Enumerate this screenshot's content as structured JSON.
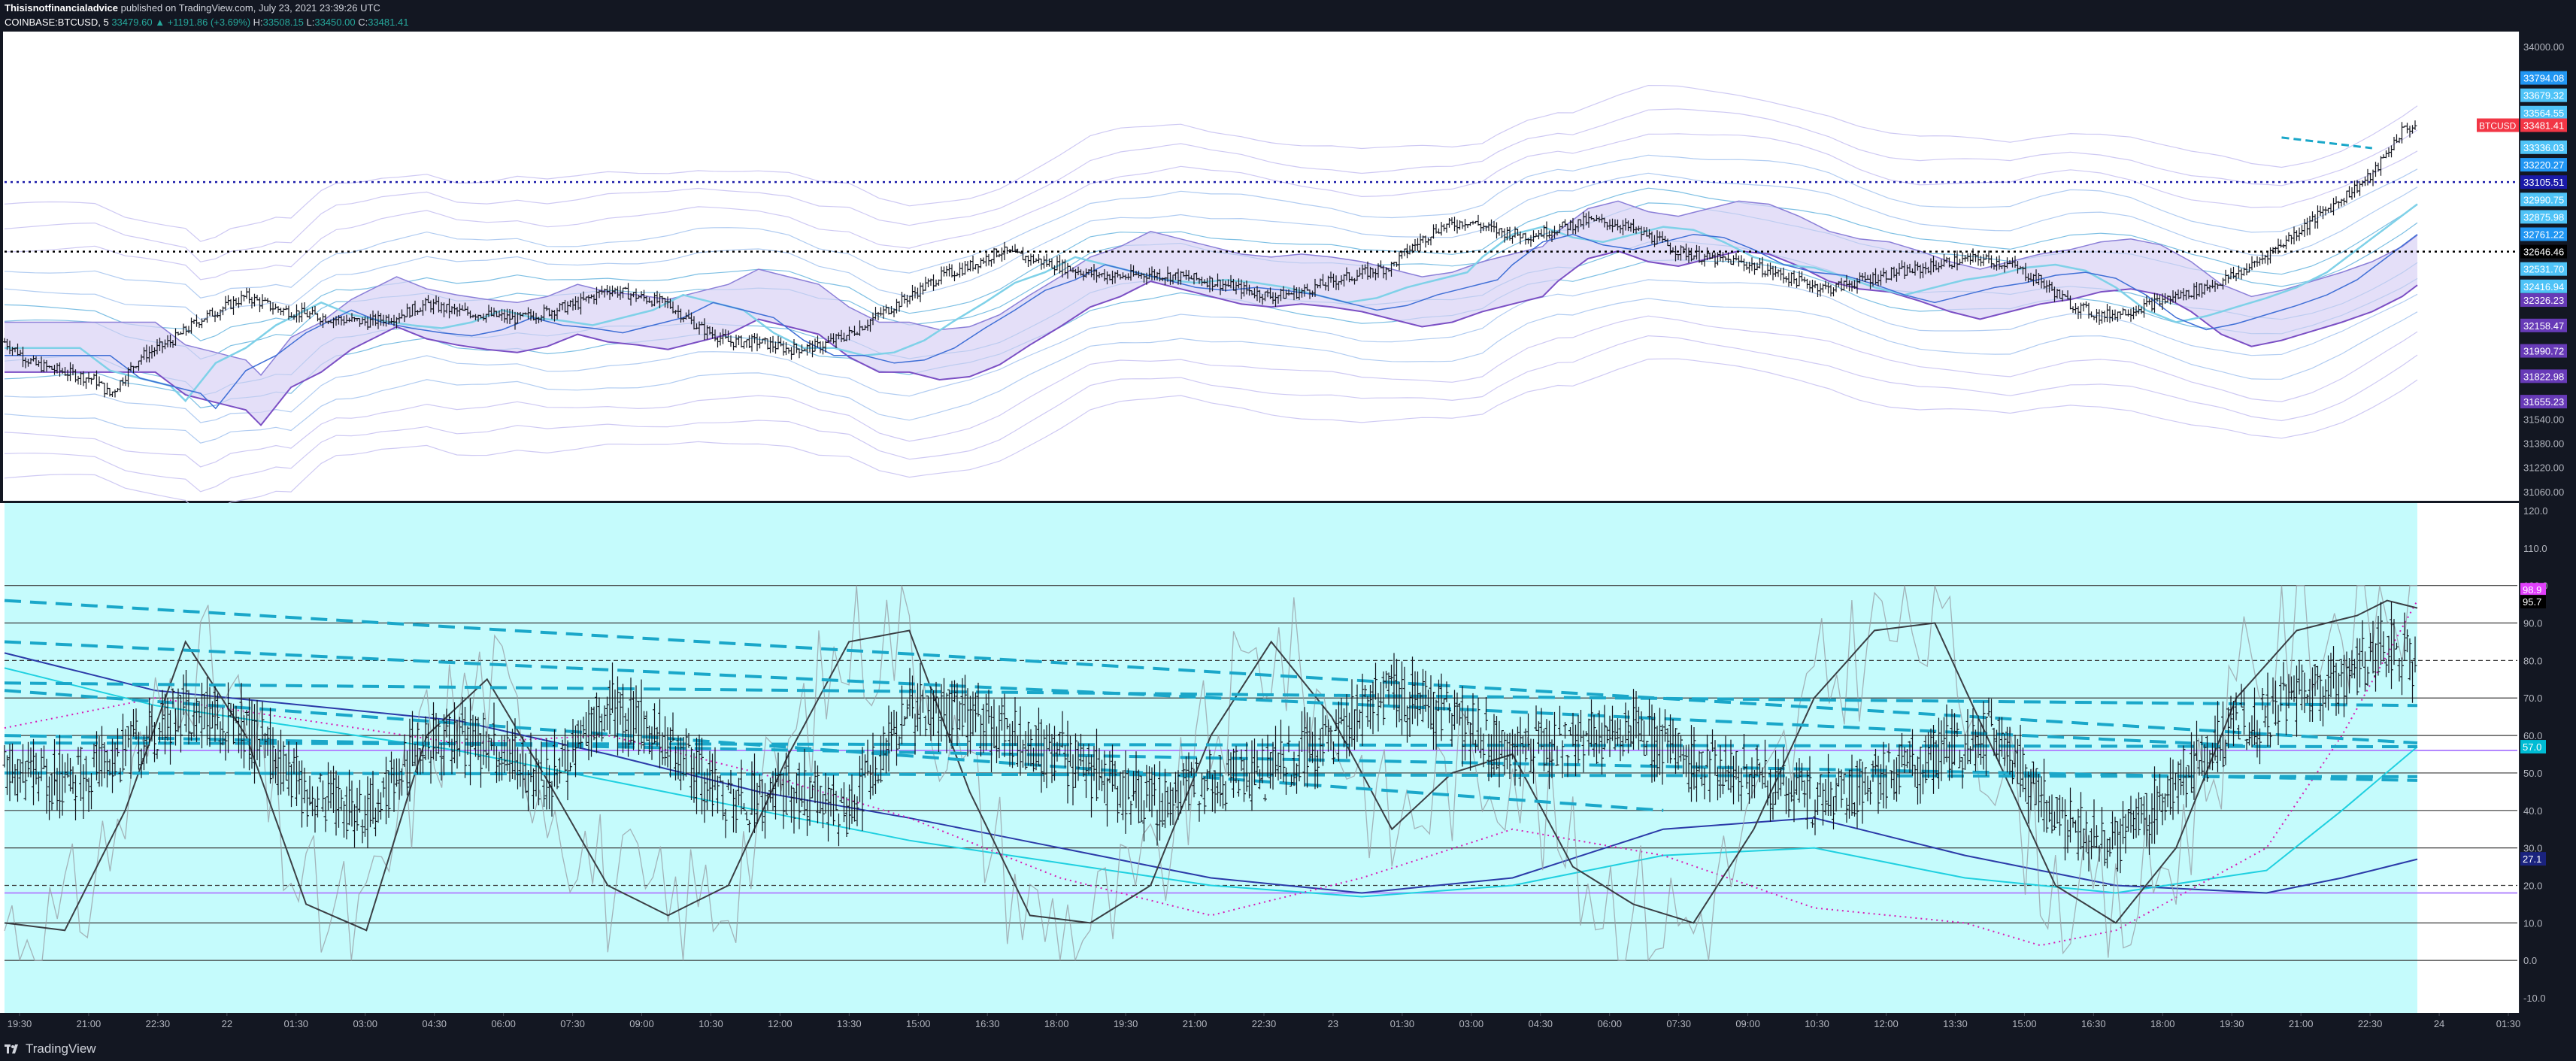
{
  "header": {
    "author": "Thisisnotfinancialadvice",
    "published_text": "published on TradingView.com, July 23, 2021 23:39:26 UTC",
    "symbol": "COINBASE:BTCUSD, 5",
    "open": "33479.60",
    "change": "+1191.86 (+3.69%)",
    "high_label": "H:",
    "high": "33508.15",
    "low_label": "L:",
    "low": "33450.00",
    "close_label": "C:",
    "close": "33481.41",
    "change_arrow": "▲"
  },
  "footer": {
    "brand": "TradingView",
    "logo_icon": "tradingview-logo-icon"
  },
  "colors": {
    "background": "#131722",
    "indicator_bg": "#c5fbfc",
    "candle": "#14161f",
    "band_fill": "#d9d2f5",
    "ribbon_teal": "#7fd1e8",
    "dashed_trend": "#1aa7c9",
    "dotted_level": "#1a1aa8",
    "axis_text": "#b2b5be"
  },
  "chart_data": [
    {
      "type": "candlestick",
      "title": "COINBASE:BTCUSD, 5",
      "ylim": [
        31000,
        34100
      ],
      "grid": false,
      "y_ticks": [
        "34000.00",
        "31540.00",
        "31380.00",
        "31220.00",
        "31060.00"
      ],
      "x_ticks": [
        "19:30",
        "21:00",
        "22:30",
        "22",
        "01:30",
        "03:00",
        "04:30",
        "06:00",
        "07:30",
        "09:00",
        "10:30",
        "12:00",
        "13:30",
        "15:00",
        "16:30",
        "18:00",
        "19:30",
        "21:00",
        "22:30",
        "23",
        "01:30",
        "03:00",
        "04:30",
        "06:00",
        "07:30",
        "09:00",
        "10:30",
        "12:00",
        "13:30",
        "15:00",
        "16:30",
        "18:00",
        "19:30",
        "21:00",
        "22:30",
        "24",
        "01:30"
      ],
      "price_path": [
        [
          0,
          32050
        ],
        [
          2,
          31900
        ],
        [
          4,
          31850
        ],
        [
          6,
          31800
        ],
        [
          7,
          31700
        ],
        [
          9,
          31950
        ],
        [
          11,
          32050
        ],
        [
          13,
          32200
        ],
        [
          15,
          32300
        ],
        [
          16,
          32350
        ],
        [
          18,
          32270
        ],
        [
          20,
          32230
        ],
        [
          22,
          32200
        ],
        [
          24,
          32180
        ],
        [
          26,
          32220
        ],
        [
          28,
          32300
        ],
        [
          30,
          32250
        ],
        [
          32,
          32230
        ],
        [
          34,
          32200
        ],
        [
          36,
          32250
        ],
        [
          38,
          32300
        ],
        [
          40,
          32400
        ],
        [
          42,
          32350
        ],
        [
          44,
          32300
        ],
        [
          46,
          32150
        ],
        [
          48,
          32050
        ],
        [
          50,
          32050
        ],
        [
          52,
          32000
        ],
        [
          54,
          32020
        ],
        [
          56,
          32100
        ],
        [
          58,
          32230
        ],
        [
          60,
          32350
        ],
        [
          62,
          32480
        ],
        [
          64,
          32550
        ],
        [
          66,
          32650
        ],
        [
          68,
          32600
        ],
        [
          70,
          32550
        ],
        [
          72,
          32500
        ],
        [
          74,
          32480
        ],
        [
          76,
          32500
        ],
        [
          78,
          32480
        ],
        [
          80,
          32450
        ],
        [
          82,
          32400
        ],
        [
          84,
          32350
        ],
        [
          86,
          32380
        ],
        [
          88,
          32450
        ],
        [
          90,
          32500
        ],
        [
          92,
          32550
        ],
        [
          93,
          32650
        ],
        [
          95,
          32800
        ],
        [
          97,
          32850
        ],
        [
          99,
          32780
        ],
        [
          101,
          32750
        ],
        [
          103,
          32800
        ],
        [
          105,
          32850
        ],
        [
          107,
          32830
        ],
        [
          109,
          32750
        ],
        [
          111,
          32650
        ],
        [
          113,
          32600
        ],
        [
          115,
          32580
        ],
        [
          117,
          32520
        ],
        [
          119,
          32450
        ],
        [
          121,
          32400
        ],
        [
          123,
          32450
        ],
        [
          125,
          32500
        ],
        [
          127,
          32530
        ],
        [
          129,
          32580
        ],
        [
          131,
          32600
        ],
        [
          133,
          32560
        ],
        [
          135,
          32450
        ],
        [
          137,
          32300
        ],
        [
          139,
          32220
        ],
        [
          141,
          32260
        ],
        [
          143,
          32320
        ],
        [
          145,
          32380
        ],
        [
          147,
          32450
        ],
        [
          149,
          32550
        ],
        [
          151,
          32700
        ],
        [
          153,
          32850
        ],
        [
          155,
          33000
        ],
        [
          157,
          33150
        ],
        [
          158,
          33300
        ],
        [
          159,
          33450
        ],
        [
          160,
          33481
        ]
      ],
      "horizontal_levels": [
        {
          "price": 33105.51,
          "style": "dotted",
          "color": "#1a1aa8"
        },
        {
          "price": 32646.46,
          "style": "dotted",
          "color": "#000000"
        }
      ],
      "last_price_tag": {
        "symbol": "BTCUSD",
        "price": "33481.41",
        "color": "#f23645"
      },
      "axis_labels": [
        {
          "text": "33794.08",
          "price": 33794.08,
          "color": "#2196f3"
        },
        {
          "text": "33679.32",
          "price": 33679.32,
          "color": "#4fc3f7"
        },
        {
          "text": "33564.55",
          "price": 33564.55,
          "color": "#4fc3f7"
        },
        {
          "text": "33481.41",
          "price": 33481.41,
          "color": "#f23645"
        },
        {
          "text": "33336.03",
          "price": 33336.03,
          "color": "#4fc3f7"
        },
        {
          "text": "33220.27",
          "price": 33220.27,
          "color": "#2196f3"
        },
        {
          "text": "33105.51",
          "price": 33105.51,
          "color": "#1a1aa8"
        },
        {
          "text": "32990.75",
          "price": 32990.75,
          "color": "#4fc3f7"
        },
        {
          "text": "32875.98",
          "price": 32875.98,
          "color": "#4fc3f7"
        },
        {
          "text": "32761.22",
          "price": 32761.22,
          "color": "#2196f3"
        },
        {
          "text": "32646.46",
          "price": 32646.46,
          "color": "#000000"
        },
        {
          "text": "32531.70",
          "price": 32531.7,
          "color": "#4fc3f7"
        },
        {
          "text": "32416.94",
          "price": 32416.94,
          "color": "#4fc3f7"
        },
        {
          "text": "32326.23",
          "price": 32326.23,
          "color": "#673ab7"
        },
        {
          "text": "32158.47",
          "price": 32158.47,
          "color": "#673ab7"
        },
        {
          "text": "31990.72",
          "price": 31990.72,
          "color": "#673ab7"
        },
        {
          "text": "31822.98",
          "price": 31822.98,
          "color": "#673ab7"
        },
        {
          "text": "31655.23",
          "price": 31655.23,
          "color": "#673ab7"
        }
      ]
    },
    {
      "type": "line",
      "title": "",
      "ylim": [
        -14,
        122
      ],
      "grid": false,
      "y_ticks": [
        "120.0",
        "110.0",
        "100.0",
        "90.0",
        "80.0",
        "70.0",
        "60.0",
        "50.0",
        "40.0",
        "30.0",
        "20.0",
        "10.0",
        "0.0",
        "-10.0"
      ],
      "horizontal_levels": [
        {
          "value": 100,
          "style": "solid"
        },
        {
          "value": 90,
          "style": "solid"
        },
        {
          "value": 80,
          "style": "dashed"
        },
        {
          "value": 70,
          "style": "solid"
        },
        {
          "value": 60,
          "style": "solid"
        },
        {
          "value": 50,
          "style": "solid"
        },
        {
          "value": 40,
          "style": "solid"
        },
        {
          "value": 30,
          "style": "solid"
        },
        {
          "value": 20,
          "style": "dashed"
        },
        {
          "value": 10,
          "style": "solid"
        },
        {
          "value": 0,
          "style": "solid"
        }
      ],
      "value_tags": [
        {
          "text": "98.9",
          "value": 98.9,
          "color": "#e040fb"
        },
        {
          "text": "95.7",
          "value": 95.7,
          "color": "#000000"
        },
        {
          "text": "57.0",
          "value": 57.0,
          "color": "#00bcd4"
        },
        {
          "text": "27.1",
          "value": 27.1,
          "color": "#1a237e"
        }
      ],
      "oscillator": [
        [
          0,
          50
        ],
        [
          4,
          48
        ],
        [
          8,
          55
        ],
        [
          12,
          68
        ],
        [
          16,
          62
        ],
        [
          20,
          45
        ],
        [
          24,
          38
        ],
        [
          28,
          60
        ],
        [
          32,
          58
        ],
        [
          36,
          48
        ],
        [
          40,
          68
        ],
        [
          44,
          58
        ],
        [
          48,
          42
        ],
        [
          52,
          45
        ],
        [
          56,
          40
        ],
        [
          60,
          68
        ],
        [
          64,
          65
        ],
        [
          68,
          58
        ],
        [
          72,
          50
        ],
        [
          76,
          42
        ],
        [
          80,
          48
        ],
        [
          84,
          50
        ],
        [
          88,
          60
        ],
        [
          92,
          72
        ],
        [
          96,
          65
        ],
        [
          100,
          55
        ],
        [
          104,
          58
        ],
        [
          108,
          62
        ],
        [
          112,
          52
        ],
        [
          116,
          50
        ],
        [
          120,
          42
        ],
        [
          124,
          48
        ],
        [
          128,
          55
        ],
        [
          132,
          60
        ],
        [
          136,
          38
        ],
        [
          140,
          30
        ],
        [
          144,
          48
        ],
        [
          148,
          62
        ],
        [
          152,
          70
        ],
        [
          156,
          78
        ],
        [
          158,
          85
        ],
        [
          160,
          78
        ]
      ],
      "stoch_line": [
        [
          0,
          10
        ],
        [
          4,
          8
        ],
        [
          8,
          40
        ],
        [
          12,
          85
        ],
        [
          16,
          60
        ],
        [
          20,
          15
        ],
        [
          24,
          8
        ],
        [
          28,
          60
        ],
        [
          32,
          75
        ],
        [
          36,
          48
        ],
        [
          40,
          20
        ],
        [
          44,
          12
        ],
        [
          48,
          20
        ],
        [
          52,
          55
        ],
        [
          56,
          85
        ],
        [
          60,
          88
        ],
        [
          64,
          45
        ],
        [
          68,
          12
        ],
        [
          72,
          10
        ],
        [
          76,
          20
        ],
        [
          80,
          60
        ],
        [
          84,
          85
        ],
        [
          88,
          65
        ],
        [
          92,
          35
        ],
        [
          96,
          50
        ],
        [
          100,
          55
        ],
        [
          104,
          25
        ],
        [
          108,
          15
        ],
        [
          112,
          10
        ],
        [
          116,
          35
        ],
        [
          120,
          70
        ],
        [
          124,
          88
        ],
        [
          128,
          90
        ],
        [
          132,
          55
        ],
        [
          136,
          20
        ],
        [
          140,
          10
        ],
        [
          144,
          30
        ],
        [
          148,
          70
        ],
        [
          152,
          88
        ],
        [
          156,
          92
        ],
        [
          158,
          96
        ],
        [
          160,
          94
        ]
      ],
      "slow_ma": [
        [
          0,
          82
        ],
        [
          10,
          72
        ],
        [
          20,
          68
        ],
        [
          30,
          64
        ],
        [
          40,
          55
        ],
        [
          50,
          45
        ],
        [
          60,
          38
        ],
        [
          70,
          30
        ],
        [
          80,
          22
        ],
        [
          90,
          18
        ],
        [
          100,
          22
        ],
        [
          110,
          35
        ],
        [
          120,
          38
        ],
        [
          130,
          28
        ],
        [
          140,
          20
        ],
        [
          150,
          18
        ],
        [
          155,
          22
        ],
        [
          160,
          27
        ]
      ],
      "cyan_ma": [
        [
          0,
          78
        ],
        [
          10,
          68
        ],
        [
          20,
          62
        ],
        [
          30,
          56
        ],
        [
          40,
          48
        ],
        [
          50,
          40
        ],
        [
          60,
          32
        ],
        [
          70,
          26
        ],
        [
          80,
          20
        ],
        [
          90,
          17
        ],
        [
          100,
          20
        ],
        [
          110,
          28
        ],
        [
          120,
          30
        ],
        [
          130,
          22
        ],
        [
          140,
          18
        ],
        [
          150,
          24
        ],
        [
          155,
          40
        ],
        [
          160,
          57
        ]
      ],
      "dashed_trendlines": [
        {
          "from": [
            0,
            96
          ],
          "to": [
            160,
            58
          ]
        },
        {
          "from": [
            0,
            85
          ],
          "to": [
            150,
            57
          ]
        },
        {
          "from": [
            0,
            74
          ],
          "to": [
            160,
            68
          ]
        },
        {
          "from": [
            0,
            60
          ],
          "to": [
            160,
            48
          ]
        },
        {
          "from": [
            0,
            58
          ],
          "to": [
            160,
            57
          ]
        },
        {
          "from": [
            0,
            50
          ],
          "to": [
            160,
            49
          ]
        },
        {
          "from": [
            0,
            72
          ],
          "to": [
            110,
            40
          ]
        }
      ],
      "magenta_dotted": [
        [
          0,
          62
        ],
        [
          10,
          70
        ],
        [
          20,
          64
        ],
        [
          30,
          58
        ],
        [
          40,
          60
        ],
        [
          50,
          50
        ],
        [
          60,
          38
        ],
        [
          70,
          22
        ],
        [
          80,
          12
        ],
        [
          90,
          22
        ],
        [
          100,
          35
        ],
        [
          110,
          28
        ],
        [
          120,
          14
        ],
        [
          130,
          10
        ],
        [
          135,
          4
        ],
        [
          140,
          8
        ],
        [
          150,
          30
        ],
        [
          155,
          60
        ],
        [
          160,
          96
        ]
      ]
    }
  ]
}
